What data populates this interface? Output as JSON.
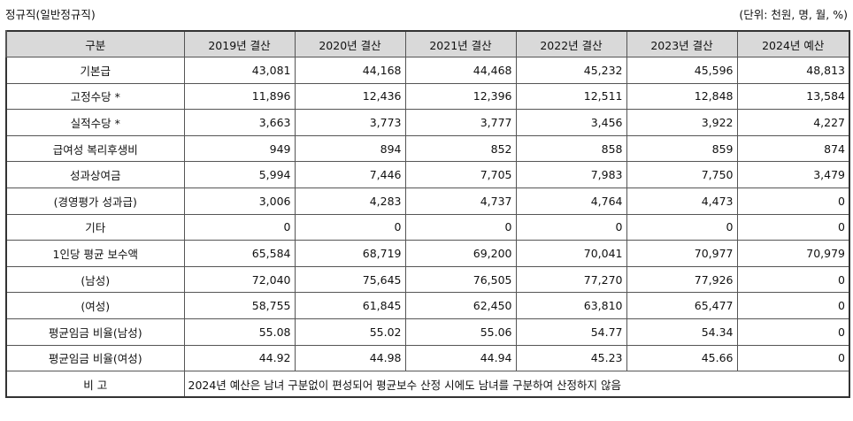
{
  "caption_left": "정규직(일반정규직)",
  "caption_right": "(단위: 천원, 명, 월, %)",
  "table": {
    "headers": [
      "구분",
      "2019년 결산",
      "2020년 결산",
      "2021년 결산",
      "2022년 결산",
      "2023년 결산",
      "2024년 예산"
    ],
    "rows": [
      {
        "label": "기본급",
        "values": [
          "43,081",
          "44,168",
          "44,468",
          "45,232",
          "45,596",
          "48,813"
        ]
      },
      {
        "label": "고정수당 *",
        "values": [
          "11,896",
          "12,436",
          "12,396",
          "12,511",
          "12,848",
          "13,584"
        ]
      },
      {
        "label": "실적수당 *",
        "values": [
          "3,663",
          "3,773",
          "3,777",
          "3,456",
          "3,922",
          "4,227"
        ]
      },
      {
        "label": "급여성 복리후생비",
        "values": [
          "949",
          "894",
          "852",
          "858",
          "859",
          "874"
        ]
      },
      {
        "label": "성과상여금",
        "values": [
          "5,994",
          "7,446",
          "7,705",
          "7,983",
          "7,750",
          "3,479"
        ]
      },
      {
        "label": "(경영평가 성과급)",
        "values": [
          "3,006",
          "4,283",
          "4,737",
          "4,764",
          "4,473",
          "0"
        ]
      },
      {
        "label": "기타",
        "values": [
          "0",
          "0",
          "0",
          "0",
          "0",
          "0"
        ]
      },
      {
        "label": "1인당 평균 보수액",
        "values": [
          "65,584",
          "68,719",
          "69,200",
          "70,041",
          "70,977",
          "70,979"
        ]
      },
      {
        "label": "(남성)",
        "values": [
          "72,040",
          "75,645",
          "76,505",
          "77,270",
          "77,926",
          "0"
        ]
      },
      {
        "label": "(여성)",
        "values": [
          "58,755",
          "61,845",
          "62,450",
          "63,810",
          "65,477",
          "0"
        ]
      },
      {
        "label": "평균임금 비율(남성)",
        "values": [
          "55.08",
          "55.02",
          "55.06",
          "54.77",
          "54.34",
          "0"
        ]
      },
      {
        "label": "평균임금 비율(여성)",
        "values": [
          "44.92",
          "44.98",
          "44.94",
          "45.23",
          "45.66",
          "0"
        ]
      }
    ],
    "note_label": "비 고",
    "note_text": "2024년 예산은 남녀 구분없이 편성되어 평균보수 산정 시에도 남녀를 구분하여 산정하지 않음"
  }
}
